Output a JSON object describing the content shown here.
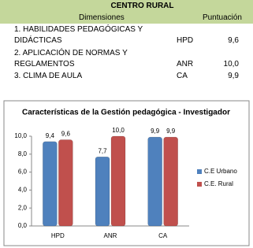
{
  "table": {
    "title": "CENTRO RURAL",
    "header": [
      "Dimensiones",
      "Puntuación"
    ],
    "rows": [
      [
        "1. HABILIDADES PEDAGÓGICAS Y DIDÁCTICAS",
        "HPD",
        "9,6"
      ],
      [
        "2. APLICACIÓN DE NORMAS Y REGLAMENTOS",
        "ANR",
        "10,0"
      ],
      [
        "3. CLIMA DE AULA",
        "CA",
        "9,9"
      ]
    ]
  },
  "chart_data": {
    "type": "bar",
    "title": "Características de la Gestión pedagógica - Investigador",
    "categories": [
      "HPD",
      "ANR",
      "CA"
    ],
    "series": [
      {
        "name": "C.E Urbano",
        "color": "#4f81bd",
        "values": [
          9.4,
          7.7,
          9.9
        ],
        "value_labels": [
          "9,4",
          "7,7",
          "9,9"
        ]
      },
      {
        "name": "C.E. Rural",
        "color": "#c0504d",
        "values": [
          9.6,
          10.0,
          9.9
        ],
        "value_labels": [
          "9,6",
          "10,0",
          "9,9"
        ]
      }
    ],
    "ylim": [
      0,
      10
    ],
    "yticks": [
      {
        "value": 0,
        "label": "0,0"
      },
      {
        "value": 2,
        "label": "2,0"
      },
      {
        "value": 4,
        "label": "4,0"
      },
      {
        "value": 6,
        "label": "6,0"
      },
      {
        "value": 8,
        "label": "8,0"
      },
      {
        "value": 10,
        "label": "10,0"
      }
    ],
    "grid": false,
    "legend": "right"
  }
}
